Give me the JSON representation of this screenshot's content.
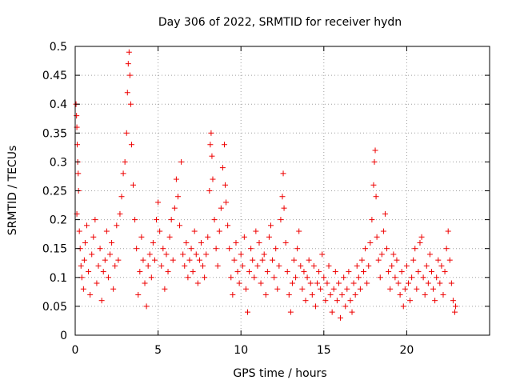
{
  "chart_data": {
    "type": "scatter",
    "title": "Day 306 of 2022, SRMTID for receiver hydn",
    "xlabel": "GPS time / hours",
    "ylabel": "SRMTID / TECUs",
    "xlim": [
      0,
      25
    ],
    "ylim": [
      0,
      0.5
    ],
    "x_ticks": [
      0,
      5,
      10,
      15,
      20
    ],
    "y_ticks": [
      0,
      0.05,
      0.1,
      0.15,
      0.2,
      0.25,
      0.3,
      0.35,
      0.4,
      0.45,
      0.5
    ],
    "x_tick_labels": [
      "0",
      "5",
      "10",
      "15",
      "20"
    ],
    "y_tick_labels": [
      "0",
      "0.05",
      "0.1",
      "0.15",
      "0.2",
      "0.25",
      "0.3",
      "0.35",
      "0.4",
      "0.45",
      "0.5"
    ],
    "grid": true,
    "marker": "+",
    "series": [
      {
        "name": "SRMTID",
        "color": "#ee0000",
        "points": [
          [
            0.05,
            0.4
          ],
          [
            0.08,
            0.38
          ],
          [
            0.1,
            0.36
          ],
          [
            0.12,
            0.33
          ],
          [
            0.15,
            0.3
          ],
          [
            0.18,
            0.28
          ],
          [
            0.2,
            0.25
          ],
          [
            0.1,
            0.21
          ],
          [
            0.25,
            0.18
          ],
          [
            0.3,
            0.15
          ],
          [
            0.35,
            0.12
          ],
          [
            0.4,
            0.1
          ],
          [
            0.5,
            0.08
          ],
          [
            0.55,
            0.13
          ],
          [
            0.6,
            0.16
          ],
          [
            0.7,
            0.19
          ],
          [
            0.8,
            0.11
          ],
          [
            0.9,
            0.07
          ],
          [
            1.0,
            0.14
          ],
          [
            1.1,
            0.17
          ],
          [
            1.2,
            0.2
          ],
          [
            1.3,
            0.09
          ],
          [
            1.4,
            0.12
          ],
          [
            1.5,
            0.15
          ],
          [
            1.6,
            0.06
          ],
          [
            1.7,
            0.11
          ],
          [
            1.8,
            0.13
          ],
          [
            1.9,
            0.18
          ],
          [
            2.0,
            0.1
          ],
          [
            2.1,
            0.14
          ],
          [
            2.2,
            0.16
          ],
          [
            2.3,
            0.08
          ],
          [
            2.4,
            0.12
          ],
          [
            2.5,
            0.19
          ],
          [
            2.6,
            0.13
          ],
          [
            2.7,
            0.21
          ],
          [
            2.8,
            0.24
          ],
          [
            2.9,
            0.28
          ],
          [
            3.0,
            0.3
          ],
          [
            3.1,
            0.35
          ],
          [
            3.15,
            0.42
          ],
          [
            3.2,
            0.47
          ],
          [
            3.25,
            0.49
          ],
          [
            3.3,
            0.45
          ],
          [
            3.35,
            0.4
          ],
          [
            3.4,
            0.33
          ],
          [
            3.5,
            0.26
          ],
          [
            3.6,
            0.2
          ],
          [
            3.7,
            0.15
          ],
          [
            3.8,
            0.07
          ],
          [
            3.9,
            0.11
          ],
          [
            4.0,
            0.17
          ],
          [
            4.1,
            0.13
          ],
          [
            4.2,
            0.09
          ],
          [
            4.3,
            0.05
          ],
          [
            4.4,
            0.12
          ],
          [
            4.5,
            0.14
          ],
          [
            4.6,
            0.1
          ],
          [
            4.7,
            0.16
          ],
          [
            4.8,
            0.13
          ],
          [
            4.9,
            0.2
          ],
          [
            5.0,
            0.23
          ],
          [
            5.1,
            0.18
          ],
          [
            5.2,
            0.12
          ],
          [
            5.3,
            0.15
          ],
          [
            5.4,
            0.08
          ],
          [
            5.5,
            0.14
          ],
          [
            5.6,
            0.11
          ],
          [
            5.7,
            0.17
          ],
          [
            5.8,
            0.2
          ],
          [
            5.9,
            0.13
          ],
          [
            6.0,
            0.22
          ],
          [
            6.1,
            0.27
          ],
          [
            6.2,
            0.24
          ],
          [
            6.3,
            0.19
          ],
          [
            6.4,
            0.3
          ],
          [
            6.5,
            0.14
          ],
          [
            6.6,
            0.12
          ],
          [
            6.7,
            0.16
          ],
          [
            6.8,
            0.1
          ],
          [
            6.9,
            0.13
          ],
          [
            7.0,
            0.15
          ],
          [
            7.1,
            0.11
          ],
          [
            7.2,
            0.18
          ],
          [
            7.3,
            0.14
          ],
          [
            7.4,
            0.09
          ],
          [
            7.5,
            0.13
          ],
          [
            7.6,
            0.16
          ],
          [
            7.7,
            0.12
          ],
          [
            7.8,
            0.1
          ],
          [
            7.9,
            0.14
          ],
          [
            8.0,
            0.17
          ],
          [
            8.1,
            0.25
          ],
          [
            8.15,
            0.33
          ],
          [
            8.2,
            0.35
          ],
          [
            8.25,
            0.31
          ],
          [
            8.3,
            0.27
          ],
          [
            8.4,
            0.2
          ],
          [
            8.5,
            0.15
          ],
          [
            8.6,
            0.12
          ],
          [
            8.7,
            0.18
          ],
          [
            8.8,
            0.22
          ],
          [
            8.9,
            0.29
          ],
          [
            9.0,
            0.33
          ],
          [
            9.05,
            0.26
          ],
          [
            9.1,
            0.23
          ],
          [
            9.2,
            0.19
          ],
          [
            9.3,
            0.15
          ],
          [
            9.4,
            0.1
          ],
          [
            9.5,
            0.07
          ],
          [
            9.6,
            0.13
          ],
          [
            9.7,
            0.16
          ],
          [
            9.8,
            0.11
          ],
          [
            9.9,
            0.09
          ],
          [
            10.0,
            0.14
          ],
          [
            10.1,
            0.12
          ],
          [
            10.2,
            0.17
          ],
          [
            10.3,
            0.08
          ],
          [
            10.4,
            0.04
          ],
          [
            10.5,
            0.11
          ],
          [
            10.6,
            0.15
          ],
          [
            10.7,
            0.13
          ],
          [
            10.8,
            0.1
          ],
          [
            10.9,
            0.18
          ],
          [
            11.0,
            0.12
          ],
          [
            11.1,
            0.16
          ],
          [
            11.2,
            0.09
          ],
          [
            11.3,
            0.13
          ],
          [
            11.4,
            0.14
          ],
          [
            11.5,
            0.07
          ],
          [
            11.6,
            0.11
          ],
          [
            11.7,
            0.17
          ],
          [
            11.8,
            0.19
          ],
          [
            11.9,
            0.13
          ],
          [
            12.0,
            0.1
          ],
          [
            12.1,
            0.15
          ],
          [
            12.2,
            0.08
          ],
          [
            12.3,
            0.12
          ],
          [
            12.4,
            0.2
          ],
          [
            12.5,
            0.24
          ],
          [
            12.55,
            0.28
          ],
          [
            12.6,
            0.22
          ],
          [
            12.7,
            0.16
          ],
          [
            12.8,
            0.11
          ],
          [
            12.9,
            0.07
          ],
          [
            13.0,
            0.04
          ],
          [
            13.1,
            0.09
          ],
          [
            13.2,
            0.13
          ],
          [
            13.3,
            0.1
          ],
          [
            13.4,
            0.15
          ],
          [
            13.5,
            0.18
          ],
          [
            13.6,
            0.12
          ],
          [
            13.7,
            0.08
          ],
          [
            13.8,
            0.11
          ],
          [
            13.9,
            0.06
          ],
          [
            14.0,
            0.1
          ],
          [
            14.1,
            0.13
          ],
          [
            14.2,
            0.09
          ],
          [
            14.3,
            0.07
          ],
          [
            14.4,
            0.12
          ],
          [
            14.5,
            0.05
          ],
          [
            14.6,
            0.09
          ],
          [
            14.7,
            0.11
          ],
          [
            14.8,
            0.08
          ],
          [
            14.9,
            0.14
          ],
          [
            15.0,
            0.1
          ],
          [
            15.1,
            0.06
          ],
          [
            15.2,
            0.09
          ],
          [
            15.3,
            0.12
          ],
          [
            15.4,
            0.07
          ],
          [
            15.5,
            0.04
          ],
          [
            15.6,
            0.08
          ],
          [
            15.7,
            0.11
          ],
          [
            15.8,
            0.06
          ],
          [
            15.9,
            0.09
          ],
          [
            16.0,
            0.03
          ],
          [
            16.1,
            0.07
          ],
          [
            16.2,
            0.1
          ],
          [
            16.3,
            0.05
          ],
          [
            16.4,
            0.08
          ],
          [
            16.5,
            0.11
          ],
          [
            16.6,
            0.06
          ],
          [
            16.7,
            0.04
          ],
          [
            16.8,
            0.09
          ],
          [
            16.9,
            0.07
          ],
          [
            17.0,
            0.12
          ],
          [
            17.1,
            0.1
          ],
          [
            17.2,
            0.08
          ],
          [
            17.3,
            0.13
          ],
          [
            17.4,
            0.11
          ],
          [
            17.5,
            0.15
          ],
          [
            17.6,
            0.09
          ],
          [
            17.7,
            0.12
          ],
          [
            17.8,
            0.16
          ],
          [
            17.9,
            0.2
          ],
          [
            18.0,
            0.26
          ],
          [
            18.05,
            0.3
          ],
          [
            18.1,
            0.32
          ],
          [
            18.15,
            0.24
          ],
          [
            18.2,
            0.17
          ],
          [
            18.3,
            0.13
          ],
          [
            18.4,
            0.1
          ],
          [
            18.5,
            0.14
          ],
          [
            18.6,
            0.18
          ],
          [
            18.7,
            0.21
          ],
          [
            18.8,
            0.15
          ],
          [
            18.9,
            0.11
          ],
          [
            19.0,
            0.08
          ],
          [
            19.1,
            0.12
          ],
          [
            19.2,
            0.14
          ],
          [
            19.3,
            0.1
          ],
          [
            19.4,
            0.13
          ],
          [
            19.5,
            0.09
          ],
          [
            19.6,
            0.07
          ],
          [
            19.7,
            0.11
          ],
          [
            19.8,
            0.05
          ],
          [
            19.9,
            0.08
          ],
          [
            20.0,
            0.12
          ],
          [
            20.1,
            0.09
          ],
          [
            20.2,
            0.06
          ],
          [
            20.3,
            0.1
          ],
          [
            20.4,
            0.13
          ],
          [
            20.5,
            0.15
          ],
          [
            20.6,
            0.08
          ],
          [
            20.7,
            0.11
          ],
          [
            20.8,
            0.16
          ],
          [
            20.9,
            0.17
          ],
          [
            21.0,
            0.1
          ],
          [
            21.1,
            0.07
          ],
          [
            21.2,
            0.12
          ],
          [
            21.3,
            0.09
          ],
          [
            21.4,
            0.14
          ],
          [
            21.5,
            0.11
          ],
          [
            21.6,
            0.08
          ],
          [
            21.7,
            0.06
          ],
          [
            21.8,
            0.1
          ],
          [
            21.9,
            0.13
          ],
          [
            22.0,
            0.09
          ],
          [
            22.1,
            0.12
          ],
          [
            22.2,
            0.07
          ],
          [
            22.3,
            0.11
          ],
          [
            22.4,
            0.15
          ],
          [
            22.5,
            0.18
          ],
          [
            22.6,
            0.13
          ],
          [
            22.7,
            0.09
          ],
          [
            22.8,
            0.06
          ],
          [
            22.9,
            0.04
          ],
          [
            22.95,
            0.05
          ]
        ]
      }
    ]
  }
}
